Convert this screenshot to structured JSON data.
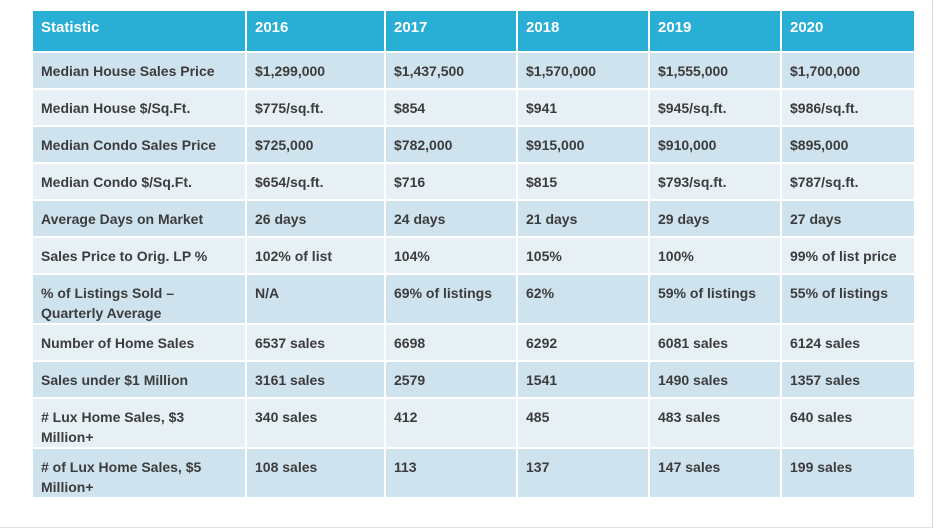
{
  "table": {
    "headers": [
      "Statistic",
      "2016",
      "2017",
      "2018",
      "2019",
      "2020"
    ],
    "rows": [
      [
        "Median House Sales Price",
        "$1,299,000",
        "$1,437,500",
        "$1,570,000",
        "$1,555,000",
        "$1,700,000"
      ],
      [
        "Median House $/Sq.Ft.",
        "$775/sq.ft.",
        "$854",
        "$941",
        "$945/sq.ft.",
        "$986/sq.ft."
      ],
      [
        "Median Condo Sales Price",
        "$725,000",
        "$782,000",
        "$915,000",
        "$910,000",
        "$895,000"
      ],
      [
        "Median Condo $/Sq.Ft.",
        "$654/sq.ft.",
        "$716",
        "$815",
        "$793/sq.ft.",
        "$787/sq.ft."
      ],
      [
        "Average Days on Market",
        "26 days",
        "24 days",
        "21 days",
        "29 days",
        "27 days"
      ],
      [
        "Sales Price to Orig. LP %",
        "102% of list",
        "104%",
        "105%",
        "100%",
        "99% of list price"
      ],
      [
        "% of Listings Sold – Quarterly Average",
        "N/A",
        "69% of listings",
        "62%",
        "59% of listings",
        "55% of listings"
      ],
      [
        "Number of Home Sales",
        "6537 sales",
        "6698",
        "6292",
        "6081 sales",
        "6124 sales"
      ],
      [
        "Sales under $1 Million",
        "3161 sales",
        "2579",
        "1541",
        "1490 sales",
        "1357 sales"
      ],
      [
        "# Lux Home Sales, $3 Million+",
        "340 sales",
        "412",
        "485",
        "483 sales",
        "640 sales"
      ],
      [
        "# of Lux Home Sales, $5 Million+",
        "108 sales",
        "113",
        "137",
        "147 sales",
        "199 sales"
      ]
    ]
  },
  "colors": {
    "header_bg": "#29aed6",
    "row_dark": "#cfe3ef",
    "row_light": "#e7f0f5"
  }
}
